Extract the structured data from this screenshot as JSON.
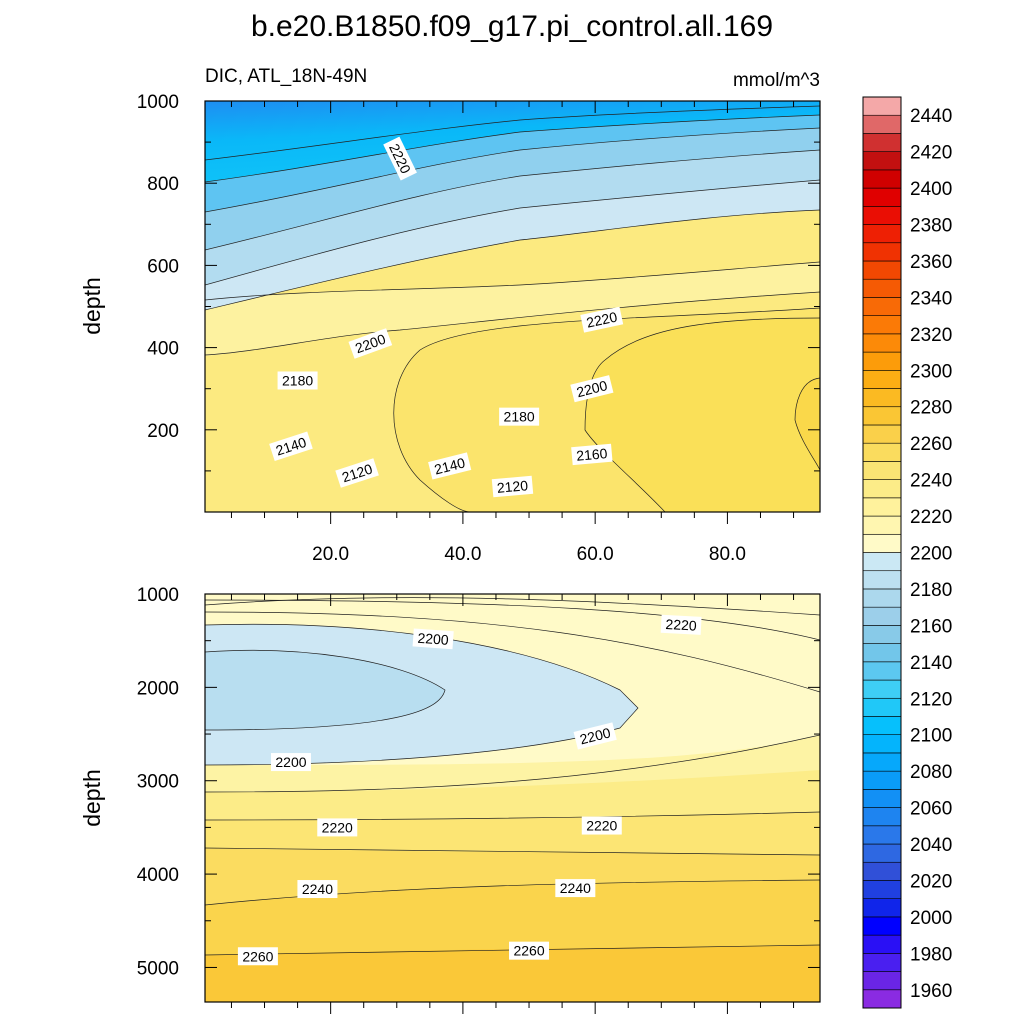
{
  "chart_data": {
    "type": "contour",
    "title": "b.e20.B1850.f09_g17.pi_control.all.169",
    "left_subtitle": "DIC, ATL_18N-49N",
    "right_subtitle": "mmol/m^3",
    "ylabel": "depth",
    "colorbar": {
      "levels": [
        1950,
        1960,
        1970,
        1980,
        1990,
        2000,
        2010,
        2020,
        2030,
        2040,
        2050,
        2060,
        2070,
        2080,
        2090,
        2100,
        2110,
        2120,
        2130,
        2140,
        2150,
        2160,
        2170,
        2180,
        2190,
        2200,
        2210,
        2220,
        2230,
        2240,
        2250,
        2260,
        2270,
        2280,
        2290,
        2300,
        2310,
        2320,
        2330,
        2340,
        2350,
        2360,
        2370,
        2380,
        2390,
        2400,
        2410,
        2420,
        2430,
        2440,
        2450
      ],
      "tick_labels": [
        "1960",
        "1980",
        "2000",
        "2020",
        "2040",
        "2060",
        "2080",
        "2100",
        "2120",
        "2140",
        "2160",
        "2180",
        "2200",
        "2220",
        "2240",
        "2260",
        "2280",
        "2300",
        "2320",
        "2340",
        "2360",
        "2380",
        "2400",
        "2420",
        "2440"
      ],
      "colors": [
        "#8a2be2",
        "#6a25e6",
        "#4a1ff0",
        "#2a10f5",
        "#0000ff",
        "#1025ea",
        "#2040e0",
        "#3050d8",
        "#2e68e2",
        "#2a78ea",
        "#1e84f0",
        "#1290f5",
        "#0a9cf8",
        "#06a8fb",
        "#04b4fc",
        "#06c0fc",
        "#20c8f8",
        "#3ecef5",
        "#5cc8f0",
        "#72c6ea",
        "#88cae8",
        "#9ccfea",
        "#acd8ed",
        "#bde0f1",
        "#cbe8f4",
        "#fffac8",
        "#fff6b0",
        "#fff29c",
        "#fcec88",
        "#fae474",
        "#fadc5e",
        "#fad04a",
        "#fac634",
        "#fbba22",
        "#fcae14",
        "#fc9c0a",
        "#fc8a08",
        "#fb7a06",
        "#f86a06",
        "#f55a04",
        "#f24802",
        "#f03202",
        "#ee2004",
        "#ea0e04",
        "#e00000",
        "#d00000",
        "#c21010",
        "#d03030",
        "#e06868",
        "#f4a8a8"
      ]
    },
    "panels": [
      {
        "name": "upper",
        "x_ticks": [
          "20.0",
          "40.0",
          "60.0",
          "80.0"
        ],
        "x_tick_values": [
          20,
          40,
          60,
          80
        ],
        "xlim": [
          1,
          94
        ],
        "y_ticks": [
          "200",
          "400",
          "600",
          "800",
          "1000"
        ],
        "y_tick_values": [
          200,
          400,
          600,
          800,
          1000
        ],
        "ylim": [
          1000,
          0
        ],
        "contour_labels": [
          {
            "text": "2120",
            "x": 24,
            "y": 95,
            "angle": -18
          },
          {
            "text": "2120",
            "x": 47.5,
            "y": 62,
            "angle": -5
          },
          {
            "text": "2140",
            "x": 14,
            "y": 160,
            "angle": -18
          },
          {
            "text": "2140",
            "x": 38,
            "y": 112,
            "angle": -14
          },
          {
            "text": "2160",
            "x": 59.5,
            "y": 140,
            "angle": -5
          },
          {
            "text": "2180",
            "x": 15,
            "y": 320,
            "angle": 0
          },
          {
            "text": "2180",
            "x": 48.5,
            "y": 232,
            "angle": 0
          },
          {
            "text": "2200",
            "x": 26,
            "y": 410,
            "angle": -20
          },
          {
            "text": "2200",
            "x": 59.5,
            "y": 300,
            "angle": -14
          },
          {
            "text": "2220",
            "x": 61,
            "y": 468,
            "angle": -12
          },
          {
            "text": "2220",
            "x": 30.5,
            "y": 860,
            "angle": 64
          }
        ]
      },
      {
        "name": "lower",
        "x_ticks": [],
        "x_tick_values": [
          20,
          40,
          60,
          80
        ],
        "xlim": [
          1,
          94
        ],
        "y_ticks": [
          "1000",
          "2000",
          "3000",
          "4000",
          "5000"
        ],
        "y_tick_values": [
          1000,
          2000,
          3000,
          4000,
          5000
        ],
        "ylim": [
          1000,
          5370
        ],
        "contour_labels": [
          {
            "text": "2200",
            "x": 35.5,
            "y": 1480,
            "angle": 4
          },
          {
            "text": "2220",
            "x": 73,
            "y": 1330,
            "angle": 3
          },
          {
            "text": "2200",
            "x": 60,
            "y": 2520,
            "angle": -14
          },
          {
            "text": "2200",
            "x": 14,
            "y": 2800,
            "angle": 0
          },
          {
            "text": "2220",
            "x": 21,
            "y": 3500,
            "angle": 0
          },
          {
            "text": "2220",
            "x": 61,
            "y": 3480,
            "angle": 0
          },
          {
            "text": "2240",
            "x": 18,
            "y": 4160,
            "angle": 0
          },
          {
            "text": "2240",
            "x": 57,
            "y": 4150,
            "angle": 0
          },
          {
            "text": "2260",
            "x": 9,
            "y": 4880,
            "angle": 0
          },
          {
            "text": "2260",
            "x": 50,
            "y": 4820,
            "angle": 0
          }
        ]
      }
    ]
  }
}
